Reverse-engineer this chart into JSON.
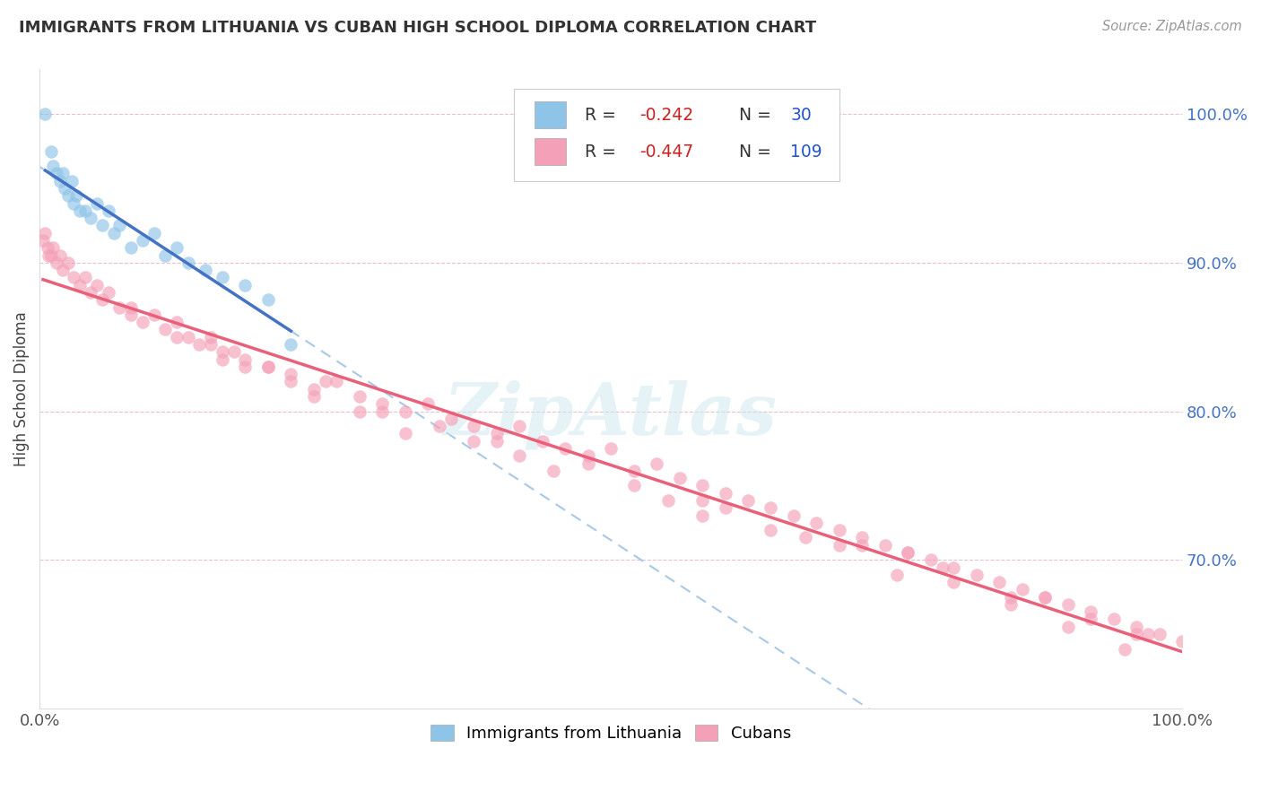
{
  "title": "IMMIGRANTS FROM LITHUANIA VS CUBAN HIGH SCHOOL DIPLOMA CORRELATION CHART",
  "source": "Source: ZipAtlas.com",
  "ylabel": "High School Diploma",
  "xlim": [
    0.0,
    100.0
  ],
  "ylim": [
    60.0,
    103.0
  ],
  "yticks": [
    70.0,
    80.0,
    90.0,
    100.0
  ],
  "ytick_labels": [
    "70.0%",
    "80.0%",
    "90.0%",
    "100.0%"
  ],
  "legend_label1": "Immigrants from Lithuania",
  "legend_label2": "Cubans",
  "color_blue": "#8ec4e8",
  "color_pink": "#f4a0b8",
  "color_blue_line": "#4472c4",
  "color_pink_line": "#e8607a",
  "color_dash": "#a8c8e8",
  "color_grid": "#e8c0cc",
  "watermark": "ZipAtlas",
  "lith_x": [
    0.5,
    1.0,
    1.2,
    1.5,
    1.8,
    2.0,
    2.2,
    2.5,
    2.8,
    3.0,
    3.2,
    3.5,
    4.0,
    4.5,
    5.0,
    5.5,
    6.0,
    6.5,
    7.0,
    8.0,
    9.0,
    10.0,
    11.0,
    12.0,
    13.0,
    14.5,
    16.0,
    18.0,
    20.0,
    22.0
  ],
  "lith_y": [
    100.0,
    97.5,
    96.5,
    96.0,
    95.5,
    96.0,
    95.0,
    94.5,
    95.5,
    94.0,
    94.5,
    93.5,
    93.5,
    93.0,
    94.0,
    92.5,
    93.5,
    92.0,
    92.5,
    91.0,
    91.5,
    92.0,
    90.5,
    91.0,
    90.0,
    89.5,
    89.0,
    88.5,
    87.5,
    84.5
  ],
  "cuba_x": [
    0.3,
    0.5,
    0.7,
    0.8,
    1.0,
    1.2,
    1.5,
    1.8,
    2.0,
    2.5,
    3.0,
    3.5,
    4.0,
    4.5,
    5.0,
    5.5,
    6.0,
    7.0,
    8.0,
    9.0,
    10.0,
    11.0,
    12.0,
    13.0,
    14.0,
    15.0,
    16.0,
    17.0,
    18.0,
    20.0,
    22.0,
    24.0,
    26.0,
    28.0,
    30.0,
    32.0,
    34.0,
    36.0,
    38.0,
    40.0,
    42.0,
    44.0,
    46.0,
    48.0,
    50.0,
    52.0,
    54.0,
    56.0,
    58.0,
    60.0,
    62.0,
    64.0,
    66.0,
    68.0,
    70.0,
    72.0,
    74.0,
    76.0,
    78.0,
    80.0,
    82.0,
    84.0,
    86.0,
    88.0,
    90.0,
    92.0,
    94.0,
    96.0,
    98.0,
    100.0,
    12.0,
    18.0,
    25.0,
    30.0,
    38.0,
    45.0,
    52.0,
    58.0,
    64.0,
    70.0,
    75.0,
    80.0,
    85.0,
    90.0,
    95.0,
    20.0,
    35.0,
    48.0,
    60.0,
    72.0,
    85.0,
    96.0,
    15.0,
    28.0,
    42.0,
    55.0,
    67.0,
    79.0,
    88.0,
    97.0,
    22.0,
    40.0,
    58.0,
    76.0,
    92.0,
    8.0,
    16.0,
    24.0,
    32.0
  ],
  "cuba_y": [
    91.5,
    92.0,
    91.0,
    90.5,
    90.5,
    91.0,
    90.0,
    90.5,
    89.5,
    90.0,
    89.0,
    88.5,
    89.0,
    88.0,
    88.5,
    87.5,
    88.0,
    87.0,
    86.5,
    86.0,
    86.5,
    85.5,
    86.0,
    85.0,
    84.5,
    85.0,
    83.5,
    84.0,
    83.5,
    83.0,
    82.5,
    81.5,
    82.0,
    81.0,
    80.5,
    80.0,
    80.5,
    79.5,
    79.0,
    78.5,
    79.0,
    78.0,
    77.5,
    77.0,
    77.5,
    76.0,
    76.5,
    75.5,
    75.0,
    74.5,
    74.0,
    73.5,
    73.0,
    72.5,
    72.0,
    71.5,
    71.0,
    70.5,
    70.0,
    69.5,
    69.0,
    68.5,
    68.0,
    67.5,
    67.0,
    66.5,
    66.0,
    65.5,
    65.0,
    64.5,
    85.0,
    83.0,
    82.0,
    80.0,
    78.0,
    76.0,
    75.0,
    73.0,
    72.0,
    71.0,
    69.0,
    68.5,
    67.0,
    65.5,
    64.0,
    83.0,
    79.0,
    76.5,
    73.5,
    71.0,
    67.5,
    65.0,
    84.5,
    80.0,
    77.0,
    74.0,
    71.5,
    69.5,
    67.5,
    65.0,
    82.0,
    78.0,
    74.0,
    70.5,
    66.0,
    87.0,
    84.0,
    81.0,
    78.5
  ]
}
